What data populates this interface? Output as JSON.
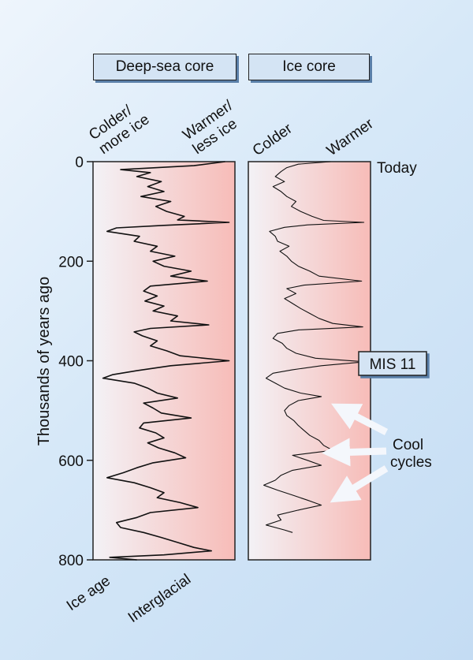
{
  "headers": {
    "deep_sea": "Deep-sea core",
    "ice_core": "Ice core"
  },
  "labels": {
    "deep_colder": [
      "Colder/",
      "more ice"
    ],
    "deep_warmer": [
      "Warmer/",
      "less ice"
    ],
    "ice_colder": "Colder",
    "ice_warmer": "Warmer",
    "today": "Today",
    "ice_age": "Ice age",
    "interglacial": "Interglacial",
    "mis11": "MIS 11",
    "cool_cycles": [
      "Cool",
      "cycles"
    ]
  },
  "colors": {
    "background": "#d6e8f8",
    "warm_fill": "#f7bcb8",
    "cold_fill": "#f3f2f6",
    "arrow": "#f4f7fc"
  },
  "chart_data": [
    {
      "type": "line",
      "title": "Deep-sea core",
      "ylabel": "Thousands of years ago",
      "ylim": [
        0,
        800
      ],
      "yticks": [
        0,
        200,
        400,
        600,
        800
      ],
      "xlim": [
        0,
        1
      ],
      "series": [
        {
          "values": [
            [
              0,
              0.95
            ],
            [
              8,
              0.72
            ],
            [
              16,
              0.18
            ],
            [
              22,
              0.4
            ],
            [
              30,
              0.3
            ],
            [
              40,
              0.48
            ],
            [
              50,
              0.38
            ],
            [
              60,
              0.5
            ],
            [
              70,
              0.33
            ],
            [
              80,
              0.55
            ],
            [
              90,
              0.44
            ],
            [
              100,
              0.52
            ],
            [
              110,
              0.65
            ],
            [
              117,
              0.6
            ],
            [
              122,
              0.98
            ],
            [
              128,
              0.5
            ],
            [
              133,
              0.15
            ],
            [
              140,
              0.08
            ],
            [
              150,
              0.32
            ],
            [
              160,
              0.28
            ],
            [
              170,
              0.45
            ],
            [
              180,
              0.4
            ],
            [
              190,
              0.58
            ],
            [
              200,
              0.42
            ],
            [
              210,
              0.5
            ],
            [
              220,
              0.7
            ],
            [
              230,
              0.55
            ],
            [
              240,
              0.82
            ],
            [
              250,
              0.4
            ],
            [
              260,
              0.35
            ],
            [
              270,
              0.45
            ],
            [
              280,
              0.36
            ],
            [
              290,
              0.5
            ],
            [
              300,
              0.42
            ],
            [
              310,
              0.6
            ],
            [
              320,
              0.55
            ],
            [
              328,
              0.83
            ],
            [
              335,
              0.4
            ],
            [
              342,
              0.28
            ],
            [
              350,
              0.34
            ],
            [
              360,
              0.45
            ],
            [
              370,
              0.4
            ],
            [
              380,
              0.52
            ],
            [
              390,
              0.62
            ],
            [
              400,
              0.98
            ],
            [
              410,
              0.55
            ],
            [
              420,
              0.3
            ],
            [
              428,
              0.12
            ],
            [
              435,
              0.05
            ],
            [
              445,
              0.28
            ],
            [
              455,
              0.38
            ],
            [
              465,
              0.45
            ],
            [
              475,
              0.6
            ],
            [
              485,
              0.35
            ],
            [
              495,
              0.42
            ],
            [
              505,
              0.48
            ],
            [
              515,
              0.7
            ],
            [
              525,
              0.35
            ],
            [
              535,
              0.32
            ],
            [
              545,
              0.44
            ],
            [
              555,
              0.5
            ],
            [
              565,
              0.38
            ],
            [
              575,
              0.46
            ],
            [
              585,
              0.58
            ],
            [
              595,
              0.66
            ],
            [
              605,
              0.42
            ],
            [
              615,
              0.3
            ],
            [
              625,
              0.2
            ],
            [
              635,
              0.08
            ],
            [
              645,
              0.28
            ],
            [
              655,
              0.4
            ],
            [
              665,
              0.5
            ],
            [
              675,
              0.45
            ],
            [
              685,
              0.62
            ],
            [
              695,
              0.75
            ],
            [
              705,
              0.4
            ],
            [
              715,
              0.3
            ],
            [
              725,
              0.15
            ],
            [
              735,
              0.18
            ],
            [
              745,
              0.35
            ],
            [
              755,
              0.48
            ],
            [
              765,
              0.6
            ],
            [
              775,
              0.72
            ],
            [
              782,
              0.85
            ],
            [
              790,
              0.5
            ],
            [
              795,
              0.1
            ],
            [
              800,
              0.3
            ]
          ]
        }
      ]
    },
    {
      "type": "line",
      "title": "Ice core",
      "ylim": [
        0,
        800
      ],
      "xlim": [
        0,
        1
      ],
      "series": [
        {
          "values": [
            [
              0,
              0.68
            ],
            [
              5,
              0.4
            ],
            [
              12,
              0.3
            ],
            [
              20,
              0.25
            ],
            [
              30,
              0.2
            ],
            [
              40,
              0.28
            ],
            [
              50,
              0.18
            ],
            [
              60,
              0.25
            ],
            [
              70,
              0.3
            ],
            [
              80,
              0.38
            ],
            [
              90,
              0.34
            ],
            [
              100,
              0.42
            ],
            [
              110,
              0.52
            ],
            [
              118,
              0.62
            ],
            [
              122,
              0.97
            ],
            [
              127,
              0.48
            ],
            [
              132,
              0.28
            ],
            [
              140,
              0.15
            ],
            [
              150,
              0.2
            ],
            [
              160,
              0.22
            ],
            [
              170,
              0.32
            ],
            [
              180,
              0.24
            ],
            [
              190,
              0.3
            ],
            [
              200,
              0.34
            ],
            [
              210,
              0.4
            ],
            [
              220,
              0.5
            ],
            [
              230,
              0.58
            ],
            [
              240,
              0.95
            ],
            [
              248,
              0.45
            ],
            [
              255,
              0.3
            ],
            [
              265,
              0.38
            ],
            [
              275,
              0.28
            ],
            [
              285,
              0.35
            ],
            [
              295,
              0.42
            ],
            [
              305,
              0.5
            ],
            [
              315,
              0.58
            ],
            [
              325,
              0.7
            ],
            [
              332,
              0.96
            ],
            [
              338,
              0.4
            ],
            [
              345,
              0.22
            ],
            [
              355,
              0.18
            ],
            [
              365,
              0.26
            ],
            [
              375,
              0.3
            ],
            [
              385,
              0.38
            ],
            [
              395,
              0.55
            ],
            [
              402,
              0.98
            ],
            [
              410,
              0.6
            ],
            [
              418,
              0.35
            ],
            [
              425,
              0.18
            ],
            [
              435,
              0.12
            ],
            [
              445,
              0.2
            ],
            [
              455,
              0.28
            ],
            [
              465,
              0.42
            ],
            [
              472,
              0.6
            ],
            [
              480,
              0.4
            ],
            [
              490,
              0.32
            ],
            [
              500,
              0.28
            ],
            [
              510,
              0.3
            ],
            [
              520,
              0.36
            ],
            [
              530,
              0.4
            ],
            [
              540,
              0.45
            ],
            [
              550,
              0.5
            ],
            [
              560,
              0.58
            ],
            [
              570,
              0.62
            ],
            [
              580,
              0.7
            ],
            [
              590,
              0.35
            ],
            [
              600,
              0.48
            ],
            [
              610,
              0.6
            ],
            [
              620,
              0.35
            ],
            [
              630,
              0.25
            ],
            [
              640,
              0.2
            ],
            [
              650,
              0.1
            ],
            [
              660,
              0.22
            ],
            [
              670,
              0.35
            ],
            [
              680,
              0.48
            ],
            [
              690,
              0.6
            ],
            [
              700,
              0.4
            ],
            [
              710,
              0.22
            ],
            [
              720,
              0.25
            ],
            [
              730,
              0.12
            ],
            [
              740,
              0.28
            ],
            [
              745,
              0.35
            ]
          ]
        }
      ]
    }
  ]
}
